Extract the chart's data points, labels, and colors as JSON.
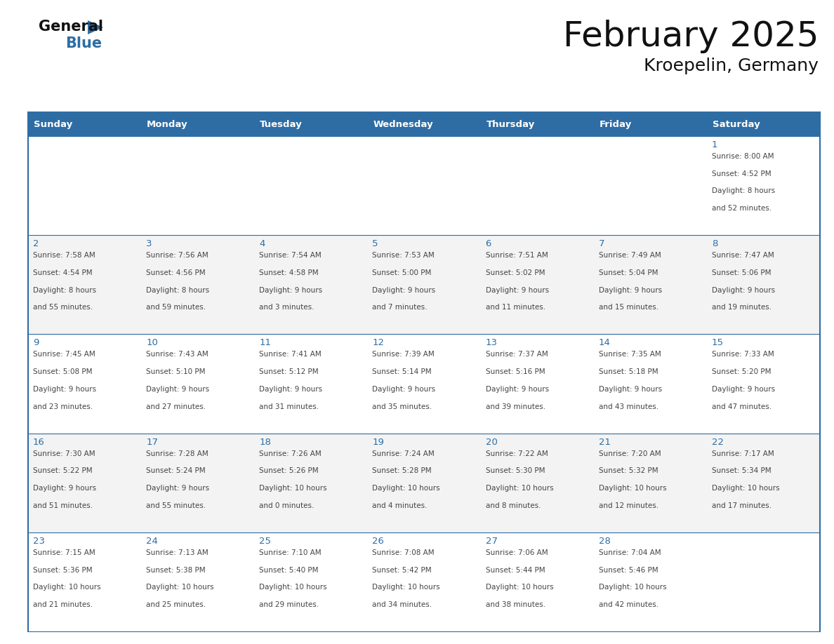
{
  "title": "February 2025",
  "subtitle": "Kroepelin, Germany",
  "header_bg": "#2E6DA4",
  "header_text_color": "#FFFFFF",
  "day_number_color": "#2E6DA4",
  "border_color": "#2E6DA4",
  "days_of_week": [
    "Sunday",
    "Monday",
    "Tuesday",
    "Wednesday",
    "Thursday",
    "Friday",
    "Saturday"
  ],
  "calendar": [
    [
      {
        "day": null
      },
      {
        "day": null
      },
      {
        "day": null
      },
      {
        "day": null
      },
      {
        "day": null
      },
      {
        "day": null
      },
      {
        "day": 1,
        "sunrise": "8:00 AM",
        "sunset": "4:52 PM",
        "daylight_hours": 8,
        "daylight_minutes": 52
      }
    ],
    [
      {
        "day": 2,
        "sunrise": "7:58 AM",
        "sunset": "4:54 PM",
        "daylight_hours": 8,
        "daylight_minutes": 55
      },
      {
        "day": 3,
        "sunrise": "7:56 AM",
        "sunset": "4:56 PM",
        "daylight_hours": 8,
        "daylight_minutes": 59
      },
      {
        "day": 4,
        "sunrise": "7:54 AM",
        "sunset": "4:58 PM",
        "daylight_hours": 9,
        "daylight_minutes": 3
      },
      {
        "day": 5,
        "sunrise": "7:53 AM",
        "sunset": "5:00 PM",
        "daylight_hours": 9,
        "daylight_minutes": 7
      },
      {
        "day": 6,
        "sunrise": "7:51 AM",
        "sunset": "5:02 PM",
        "daylight_hours": 9,
        "daylight_minutes": 11
      },
      {
        "day": 7,
        "sunrise": "7:49 AM",
        "sunset": "5:04 PM",
        "daylight_hours": 9,
        "daylight_minutes": 15
      },
      {
        "day": 8,
        "sunrise": "7:47 AM",
        "sunset": "5:06 PM",
        "daylight_hours": 9,
        "daylight_minutes": 19
      }
    ],
    [
      {
        "day": 9,
        "sunrise": "7:45 AM",
        "sunset": "5:08 PM",
        "daylight_hours": 9,
        "daylight_minutes": 23
      },
      {
        "day": 10,
        "sunrise": "7:43 AM",
        "sunset": "5:10 PM",
        "daylight_hours": 9,
        "daylight_minutes": 27
      },
      {
        "day": 11,
        "sunrise": "7:41 AM",
        "sunset": "5:12 PM",
        "daylight_hours": 9,
        "daylight_minutes": 31
      },
      {
        "day": 12,
        "sunrise": "7:39 AM",
        "sunset": "5:14 PM",
        "daylight_hours": 9,
        "daylight_minutes": 35
      },
      {
        "day": 13,
        "sunrise": "7:37 AM",
        "sunset": "5:16 PM",
        "daylight_hours": 9,
        "daylight_minutes": 39
      },
      {
        "day": 14,
        "sunrise": "7:35 AM",
        "sunset": "5:18 PM",
        "daylight_hours": 9,
        "daylight_minutes": 43
      },
      {
        "day": 15,
        "sunrise": "7:33 AM",
        "sunset": "5:20 PM",
        "daylight_hours": 9,
        "daylight_minutes": 47
      }
    ],
    [
      {
        "day": 16,
        "sunrise": "7:30 AM",
        "sunset": "5:22 PM",
        "daylight_hours": 9,
        "daylight_minutes": 51
      },
      {
        "day": 17,
        "sunrise": "7:28 AM",
        "sunset": "5:24 PM",
        "daylight_hours": 9,
        "daylight_minutes": 55
      },
      {
        "day": 18,
        "sunrise": "7:26 AM",
        "sunset": "5:26 PM",
        "daylight_hours": 10,
        "daylight_minutes": 0
      },
      {
        "day": 19,
        "sunrise": "7:24 AM",
        "sunset": "5:28 PM",
        "daylight_hours": 10,
        "daylight_minutes": 4
      },
      {
        "day": 20,
        "sunrise": "7:22 AM",
        "sunset": "5:30 PM",
        "daylight_hours": 10,
        "daylight_minutes": 8
      },
      {
        "day": 21,
        "sunrise": "7:20 AM",
        "sunset": "5:32 PM",
        "daylight_hours": 10,
        "daylight_minutes": 12
      },
      {
        "day": 22,
        "sunrise": "7:17 AM",
        "sunset": "5:34 PM",
        "daylight_hours": 10,
        "daylight_minutes": 17
      }
    ],
    [
      {
        "day": 23,
        "sunrise": "7:15 AM",
        "sunset": "5:36 PM",
        "daylight_hours": 10,
        "daylight_minutes": 21
      },
      {
        "day": 24,
        "sunrise": "7:13 AM",
        "sunset": "5:38 PM",
        "daylight_hours": 10,
        "daylight_minutes": 25
      },
      {
        "day": 25,
        "sunrise": "7:10 AM",
        "sunset": "5:40 PM",
        "daylight_hours": 10,
        "daylight_minutes": 29
      },
      {
        "day": 26,
        "sunrise": "7:08 AM",
        "sunset": "5:42 PM",
        "daylight_hours": 10,
        "daylight_minutes": 34
      },
      {
        "day": 27,
        "sunrise": "7:06 AM",
        "sunset": "5:44 PM",
        "daylight_hours": 10,
        "daylight_minutes": 38
      },
      {
        "day": 28,
        "sunrise": "7:04 AM",
        "sunset": "5:46 PM",
        "daylight_hours": 10,
        "daylight_minutes": 42
      },
      {
        "day": null
      }
    ]
  ],
  "logo_triangle_color": "#2E6DA4",
  "fig_width": 11.88,
  "fig_height": 9.18,
  "fig_dpi": 100
}
